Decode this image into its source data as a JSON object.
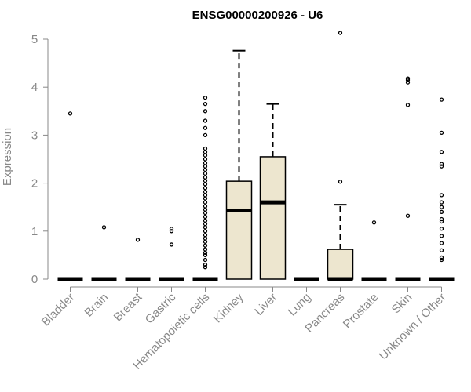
{
  "chart_data": {
    "type": "box",
    "title": "ENSG00000200926 - U6",
    "xlabel": "",
    "ylabel": "Expression",
    "ylim": [
      0,
      5
    ],
    "yticks": [
      0,
      1,
      2,
      3,
      4,
      5
    ],
    "grid": false,
    "colors": {
      "box_fill": "#EDE6CF",
      "box_stroke": "#000000",
      "axis": "#888888",
      "text": "#888888"
    },
    "categories": [
      "Bladder",
      "Brain",
      "Breast",
      "Gastric",
      "Hematopoietic cells",
      "Kidney",
      "Liver",
      "Lung",
      "Pancreas",
      "Prostate",
      "Skin",
      "Unknown / Other"
    ],
    "boxes": [
      {
        "q1": 0,
        "median": 0,
        "q3": 0,
        "whisker_low": 0,
        "whisker_high": 0,
        "outliers": [
          3.45
        ]
      },
      {
        "q1": 0,
        "median": 0,
        "q3": 0,
        "whisker_low": 0,
        "whisker_high": 0,
        "outliers": [
          1.08
        ]
      },
      {
        "q1": 0,
        "median": 0,
        "q3": 0,
        "whisker_low": 0,
        "whisker_high": 0,
        "outliers": [
          0.82
        ]
      },
      {
        "q1": 0,
        "median": 0,
        "q3": 0,
        "whisker_low": 0,
        "whisker_high": 0,
        "outliers": [
          0.72,
          1.0,
          1.05
        ]
      },
      {
        "q1": 0,
        "median": 0,
        "q3": 0,
        "whisker_low": 0,
        "whisker_high": 0,
        "outliers": [
          0.25,
          0.3,
          0.4,
          0.5,
          0.55,
          0.62,
          0.7,
          0.78,
          0.85,
          0.92,
          1.0,
          1.08,
          1.15,
          1.22,
          1.3,
          1.38,
          1.45,
          1.52,
          1.6,
          1.68,
          1.75,
          1.82,
          1.9,
          1.98,
          2.05,
          2.12,
          2.2,
          2.28,
          2.35,
          2.42,
          2.5,
          2.58,
          2.65,
          2.72,
          3.0,
          3.15,
          3.3,
          3.5,
          3.65,
          3.78
        ]
      },
      {
        "q1": 0,
        "median": 1.43,
        "q3": 2.04,
        "whisker_low": 0,
        "whisker_high": 4.76,
        "outliers": []
      },
      {
        "q1": 0,
        "median": 1.6,
        "q3": 2.55,
        "whisker_low": 0,
        "whisker_high": 3.65,
        "outliers": []
      },
      {
        "q1": 0,
        "median": 0,
        "q3": 0,
        "whisker_low": 0,
        "whisker_high": 0,
        "outliers": []
      },
      {
        "q1": 0,
        "median": 0,
        "q3": 0.62,
        "whisker_low": 0,
        "whisker_high": 1.55,
        "outliers": [
          2.03,
          5.13
        ]
      },
      {
        "q1": 0,
        "median": 0,
        "q3": 0,
        "whisker_low": 0,
        "whisker_high": 0,
        "outliers": [
          1.18
        ]
      },
      {
        "q1": 0,
        "median": 0,
        "q3": 0,
        "whisker_low": 0,
        "whisker_high": 0,
        "outliers": [
          1.32,
          3.63,
          4.1,
          4.15,
          4.18
        ]
      },
      {
        "q1": 0,
        "median": 0,
        "q3": 0,
        "whisker_low": 0,
        "whisker_high": 0,
        "outliers": [
          0.4,
          0.45,
          0.6,
          0.75,
          0.9,
          1.05,
          1.2,
          1.25,
          1.4,
          1.5,
          1.6,
          1.75,
          2.35,
          2.4,
          2.65,
          3.05,
          3.74
        ]
      }
    ]
  }
}
